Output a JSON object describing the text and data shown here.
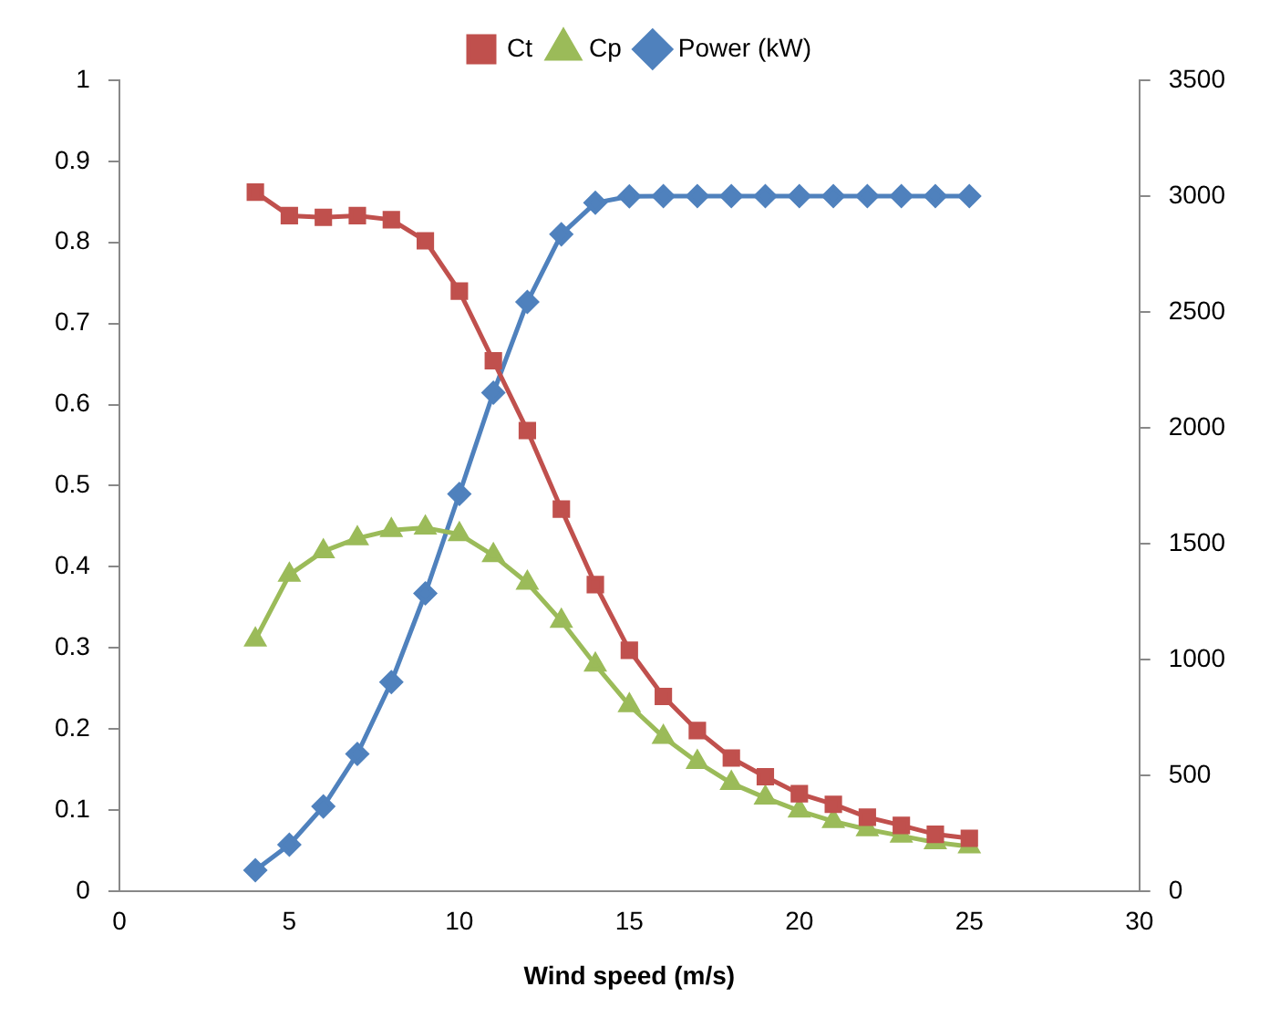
{
  "chart_data": {
    "type": "line",
    "xlabel": "Wind speed (m/s)",
    "x": [
      4,
      5,
      6,
      7,
      8,
      9,
      10,
      11,
      12,
      13,
      14,
      15,
      16,
      17,
      18,
      19,
      20,
      21,
      22,
      23,
      24,
      25
    ],
    "xlim": [
      0,
      30
    ],
    "xticks": [
      0,
      5,
      10,
      15,
      20,
      25,
      30
    ],
    "ylim": [
      0,
      1
    ],
    "yticks": [
      0,
      0.1,
      0.2,
      0.3,
      0.4,
      0.5,
      0.6,
      0.7,
      0.8,
      0.9,
      1
    ],
    "y2lim": [
      0,
      3500
    ],
    "y2ticks": [
      0,
      500,
      1000,
      1500,
      2000,
      2500,
      3000,
      3500
    ],
    "grid": false,
    "legend": "top",
    "series": [
      {
        "name": "Ct",
        "color": "#c0504d",
        "marker": "square",
        "values": [
          0.862,
          0.833,
          0.831,
          0.833,
          0.828,
          0.802,
          0.74,
          0.654,
          0.568,
          0.471,
          0.378,
          0.297,
          0.24,
          0.198,
          0.164,
          0.141,
          0.12,
          0.107,
          0.091,
          0.081,
          0.07,
          0.065
        ]
      },
      {
        "name": "Cp",
        "color": "#9bbb59",
        "marker": "triangle",
        "values": [
          0.31,
          0.39,
          0.419,
          0.435,
          0.445,
          0.448,
          0.44,
          0.414,
          0.38,
          0.333,
          0.279,
          0.229,
          0.19,
          0.159,
          0.133,
          0.115,
          0.099,
          0.086,
          0.076,
          0.068,
          0.06,
          0.055
        ]
      },
      {
        "name": "Power (kW)",
        "color": "#4f81bd",
        "marker": "diamond",
        "axis": "y2",
        "values": [
          90,
          200,
          365,
          592,
          902,
          1285,
          1714,
          2151,
          2543,
          2835,
          2971,
          2999,
          3000,
          3000,
          3000,
          3000,
          3000,
          3000,
          3000,
          3000,
          3000,
          3000
        ]
      }
    ]
  }
}
